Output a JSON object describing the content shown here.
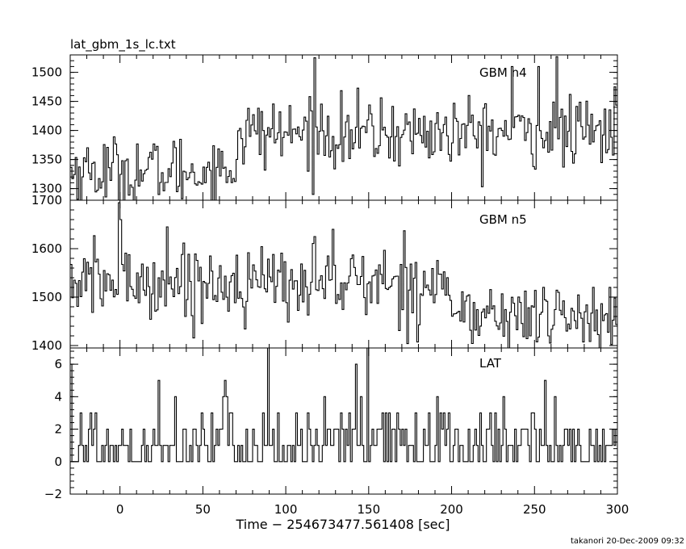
{
  "chart_data": {
    "type": "line",
    "title": "lat_gbm_1s_lc.txt",
    "xlabel": "Time − 254673477.561408 [sec]",
    "credit": "takanori 20-Dec-2009 09:32",
    "xlim": [
      -30,
      300
    ],
    "xticks": [
      0,
      50,
      100,
      150,
      200,
      250,
      300
    ],
    "x_tick_labels": [
      "0",
      "50",
      "100",
      "150",
      "200",
      "250",
      "300"
    ],
    "panels": [
      {
        "name": "GBM n4",
        "ylim": [
          1280,
          1530
        ],
        "yticks": [
          1300,
          1350,
          1400,
          1450,
          1500
        ],
        "y_tick_labels": [
          "1300",
          "1350",
          "1400",
          "1450",
          "1500"
        ],
        "segments": [
          {
            "x": [
              -30,
              70
            ],
            "mean": 1330,
            "sd": 30
          },
          {
            "x": [
              70,
              300
            ],
            "mean": 1395,
            "sd": 30
          }
        ],
        "spikes": [
          {
            "x": 117,
            "y": 1525
          },
          {
            "x": 263,
            "y": 1527
          },
          {
            "x": 236,
            "y": 1510
          },
          {
            "x": 252,
            "y": 1510
          },
          {
            "x": 298,
            "y": 1475
          }
        ]
      },
      {
        "name": "GBM n5",
        "ylim": [
          1395,
          1700
        ],
        "yticks": [
          1400,
          1500,
          1600,
          1700
        ],
        "y_tick_labels": [
          "1400",
          "1500",
          "1600",
          "1700"
        ],
        "segments": [
          {
            "x": [
              -30,
              200
            ],
            "mean": 1530,
            "sd": 38
          },
          {
            "x": [
              200,
              300
            ],
            "mean": 1460,
            "sd": 35
          }
        ],
        "spikes": [
          {
            "x": -1,
            "y": 1695
          },
          {
            "x": 0,
            "y": 1660
          },
          {
            "x": 28,
            "y": 1645
          },
          {
            "x": 128,
            "y": 1640
          },
          {
            "x": 117,
            "y": 1625
          }
        ]
      },
      {
        "name": "LAT",
        "ylim": [
          -2,
          7
        ],
        "yticks": [
          -2,
          0,
          2,
          4,
          6
        ],
        "y_tick_labels": [
          "−2",
          "0",
          "2",
          "4",
          "6"
        ],
        "counts": true,
        "segments": [
          {
            "x": [
              -30,
              300
            ],
            "mean": 1,
            "sd": 1
          }
        ],
        "spikes": [
          {
            "x": 89,
            "y": 7
          },
          {
            "x": 149,
            "y": 7
          },
          {
            "x": 142,
            "y": 6
          },
          {
            "x": -30,
            "y": 6
          },
          {
            "x": 23,
            "y": 5
          }
        ]
      }
    ]
  }
}
